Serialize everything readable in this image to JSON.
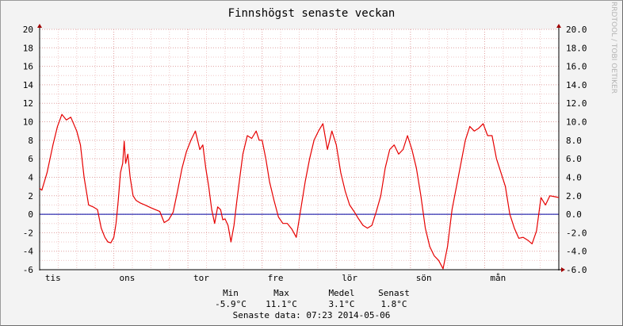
{
  "chart_data": {
    "type": "line",
    "title": "Finnshögst senaste veckan",
    "ylim": [
      -6,
      20
    ],
    "y_ticks_left": [
      "20",
      "18",
      "16",
      "14",
      "12",
      "10",
      "8",
      "6",
      "4",
      "2",
      "0",
      "-2",
      "-4",
      "-6"
    ],
    "y_ticks_right": [
      "20.0",
      "18.0",
      "16.0",
      "14.0",
      "12.0",
      "10.0",
      "8.0",
      "6.0",
      "4.0",
      "2.0",
      "0.0",
      "-2.0",
      "-4.0",
      "-6.0"
    ],
    "x_tick_labels": [
      "tis",
      "ons",
      "tor",
      "fre",
      "lör",
      "sön",
      "mån"
    ],
    "x_range_days": [
      0,
      7
    ],
    "grid": true,
    "series": [
      {
        "color": "#e60000",
        "x": [
          0,
          0.03,
          0.1,
          0.18,
          0.24,
          0.3,
          0.36,
          0.42,
          0.5,
          0.55,
          0.6,
          0.66,
          0.72,
          0.78,
          0.83,
          0.88,
          0.92,
          0.96,
          1.0,
          1.03,
          1.06,
          1.09,
          1.12,
          1.14,
          1.16,
          1.19,
          1.22,
          1.26,
          1.3,
          1.36,
          1.42,
          1.5,
          1.56,
          1.62,
          1.68,
          1.74,
          1.8,
          1.86,
          1.92,
          1.98,
          2.04,
          2.1,
          2.16,
          2.2,
          2.24,
          2.28,
          2.32,
          2.36,
          2.4,
          2.44,
          2.47,
          2.5,
          2.54,
          2.58,
          2.62,
          2.66,
          2.7,
          2.74,
          2.8,
          2.86,
          2.92,
          2.96,
          3.0,
          3.05,
          3.1,
          3.16,
          3.22,
          3.28,
          3.34,
          3.4,
          3.46,
          3.52,
          3.58,
          3.64,
          3.7,
          3.76,
          3.82,
          3.88,
          3.94,
          4.0,
          4.06,
          4.12,
          4.18,
          4.24,
          4.3,
          4.36,
          4.42,
          4.48,
          4.54,
          4.6,
          4.66,
          4.72,
          4.78,
          4.84,
          4.9,
          4.96,
          5.02,
          5.08,
          5.14,
          5.2,
          5.26,
          5.32,
          5.38,
          5.44,
          5.5,
          5.56,
          5.62,
          5.68,
          5.74,
          5.8,
          5.86,
          5.92,
          5.98,
          6.04,
          6.1,
          6.16,
          6.22,
          6.28,
          6.34,
          6.4,
          6.46,
          6.52,
          6.58,
          6.64,
          6.7,
          6.76,
          6.82,
          6.88,
          6.94,
          7.0
        ],
        "y": [
          2.8,
          2.6,
          4.5,
          7.5,
          9.5,
          10.8,
          10.2,
          10.5,
          9.0,
          7.5,
          4.0,
          1.0,
          0.8,
          0.5,
          -1.5,
          -2.5,
          -3.0,
          -3.1,
          -2.5,
          -1.0,
          1.5,
          4.5,
          5.5,
          7.9,
          5.5,
          6.5,
          4.0,
          2.0,
          1.5,
          1.2,
          1.0,
          0.7,
          0.5,
          0.3,
          -0.9,
          -0.6,
          0.2,
          2.5,
          5.0,
          6.8,
          8.0,
          9.0,
          7.0,
          7.5,
          5.0,
          3.0,
          0.5,
          -1.0,
          0.8,
          0.5,
          -0.6,
          -0.5,
          -1.2,
          -3.0,
          -1.2,
          1.5,
          4.0,
          6.5,
          8.5,
          8.2,
          9.0,
          8.0,
          8.0,
          6.0,
          3.5,
          1.5,
          -0.3,
          -1.0,
          -1.0,
          -1.6,
          -2.5,
          0.5,
          3.5,
          6.0,
          8.0,
          9.0,
          9.8,
          7.0,
          9.0,
          7.5,
          4.5,
          2.5,
          1.0,
          0.3,
          -0.5,
          -1.2,
          -1.5,
          -1.2,
          0.3,
          2.0,
          5.0,
          7.0,
          7.5,
          6.5,
          7.0,
          8.5,
          7.0,
          5.0,
          2.0,
          -1.5,
          -3.5,
          -4.5,
          -5.0,
          -5.9,
          -3.5,
          0.5,
          3.0,
          5.5,
          8.0,
          9.5,
          9.0,
          9.3,
          9.8,
          8.5,
          8.5,
          6.0,
          4.5,
          3.0,
          0.0,
          -1.5,
          -2.6,
          -2.5,
          -2.8,
          -3.2,
          -1.8,
          1.8,
          1.0,
          2.0,
          1.9,
          1.8
        ]
      }
    ],
    "legend": {
      "headers": [
        "Min",
        "Max",
        "Medel",
        "Senast"
      ],
      "values": [
        "-5.9°C",
        "11.1°C",
        "3.1°C",
        "1.8°C"
      ],
      "updated": "Senaste data: 07:23 2014-05-06"
    },
    "watermark": "RRDTOOL / TOBI OETIKER",
    "colors": {
      "background": "#f3f3f3",
      "plot_background": "#ffffff",
      "series": "#e60000",
      "zero_line": "#0000a0",
      "grid_major": "#e0a0a0",
      "grid_minor": "#f0c8c8",
      "axis": "#000000"
    }
  }
}
